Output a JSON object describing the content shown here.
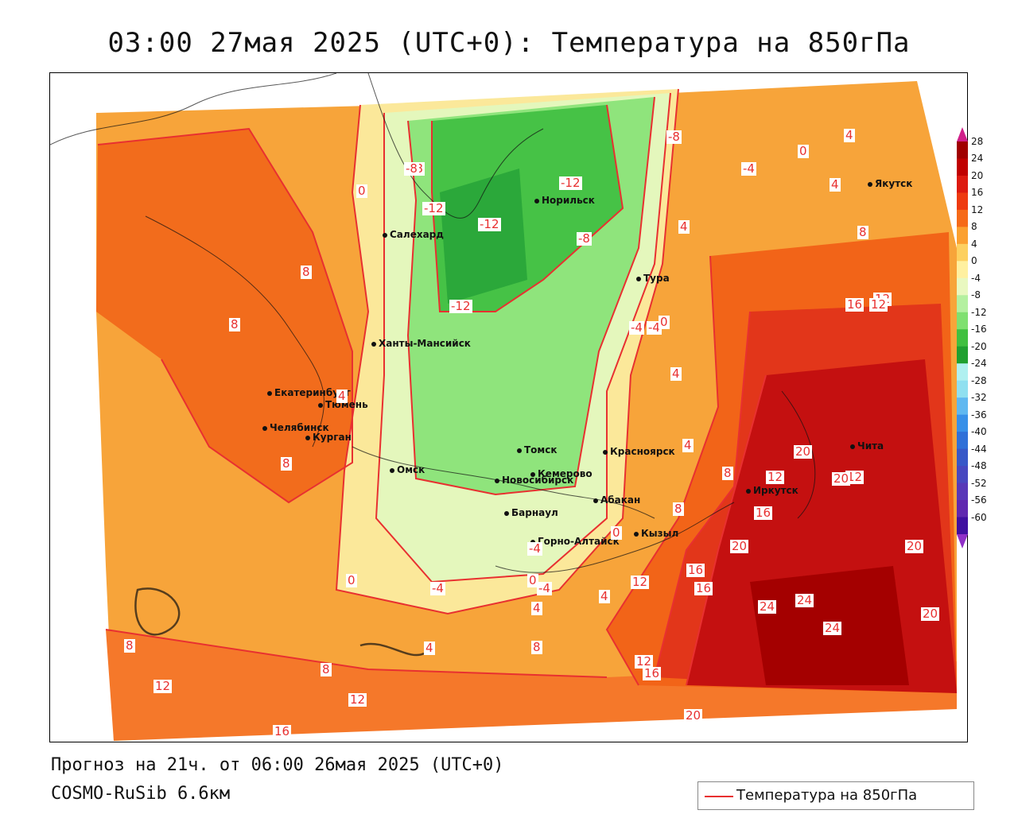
{
  "title": "03:00 27мая 2025 (UTC+0): Температура на 850гПа",
  "footer": {
    "forecast": "Прогноз на 21ч. от 06:00 26мая 2025 (UTC+0)",
    "model": "COSMO-RuSib 6.6км"
  },
  "legend": {
    "label": "Температура на 850гПа",
    "color": "#e83030"
  },
  "colorbar": {
    "labels": [
      "28",
      "24",
      "20",
      "16",
      "12",
      "8",
      "4",
      "0",
      "-4",
      "-8",
      "-12",
      "-16",
      "-20",
      "-24",
      "-28",
      "-32",
      "-36",
      "-40",
      "-44",
      "-48",
      "-52",
      "-56",
      "-60"
    ],
    "colors": [
      "#a00000",
      "#c00000",
      "#dd1a10",
      "#ee3a10",
      "#f66a18",
      "#fba030",
      "#fdd060",
      "#fff0a0",
      "#e9f8c0",
      "#b4f0a0",
      "#7fe070",
      "#40c040",
      "#20a030",
      "#b0f0f0",
      "#90e0f0",
      "#60b8f0",
      "#3890e8",
      "#3070d8",
      "#3858c8",
      "#4848c0",
      "#5838b8",
      "#6028b0",
      "#4010a0"
    ],
    "top_arrow": "#d0208a",
    "bottom_arrow": "#9030c8"
  },
  "cities": [
    {
      "name": "Салехард"
    },
    {
      "name": "Норильск"
    },
    {
      "name": "Тура"
    },
    {
      "name": "Якутск"
    },
    {
      "name": "Ханты-Мансийск"
    },
    {
      "name": "Екатеринбург"
    },
    {
      "name": "Тюмень"
    },
    {
      "name": "Челябинск"
    },
    {
      "name": "Курган"
    },
    {
      "name": "Омск"
    },
    {
      "name": "Новосибирск"
    },
    {
      "name": "Томск"
    },
    {
      "name": "Кемерово"
    },
    {
      "name": "Красноярск"
    },
    {
      "name": "Барнаул"
    },
    {
      "name": "Абакан"
    },
    {
      "name": "Горно-Алтайск"
    },
    {
      "name": "Кызыл"
    },
    {
      "name": "Иркутск"
    },
    {
      "name": "Чита"
    }
  ],
  "isoline_labels": [
    "-8",
    "-12",
    "-12",
    "-12",
    "-12",
    "-8",
    "-8",
    "-8",
    "-4",
    "-4",
    "-4",
    "-4",
    "-4",
    "-4",
    "0",
    "0",
    "0",
    "0",
    "0",
    "0",
    "4",
    "4",
    "4",
    "4",
    "4",
    "4",
    "4",
    "4",
    "4",
    "8",
    "8",
    "8",
    "8",
    "8",
    "8",
    "8",
    "8",
    "8",
    "12",
    "12",
    "12",
    "12",
    "12",
    "12",
    "12",
    "12",
    "16",
    "16",
    "16",
    "16",
    "16",
    "16",
    "20",
    "20",
    "20",
    "20",
    "20",
    "20",
    "24",
    "24",
    "24"
  ]
}
